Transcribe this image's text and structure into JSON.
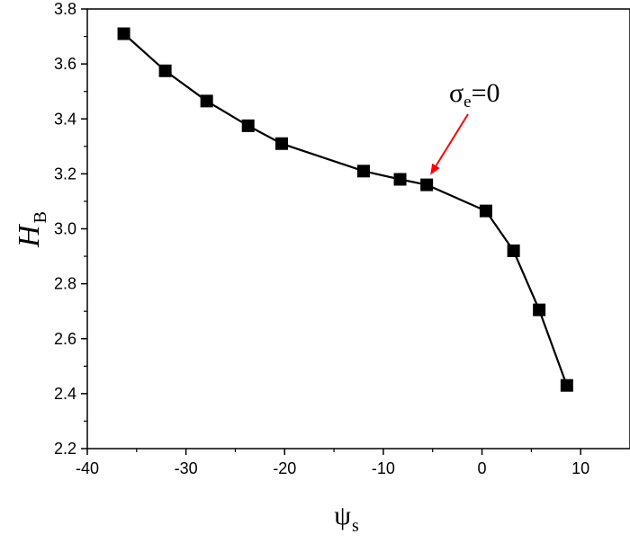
{
  "chart_data": {
    "type": "line",
    "title": "",
    "xlabel": {
      "main": "ψ",
      "sub": "s"
    },
    "ylabel": {
      "main": "H",
      "sub": "B"
    },
    "xlim": [
      -40,
      15
    ],
    "ylim": [
      2.2,
      3.8
    ],
    "x_ticks": [
      -40,
      -30,
      -20,
      -10,
      0,
      10
    ],
    "x_tick_labels": [
      "-40",
      "-30",
      "-20",
      "-10",
      "0",
      "10"
    ],
    "y_ticks": [
      2.2,
      2.4,
      2.6,
      2.8,
      3.0,
      3.2,
      3.4,
      3.6,
      3.8
    ],
    "y_tick_labels": [
      "2.2",
      "2.4",
      "2.6",
      "2.8",
      "3.0",
      "3.2",
      "3.4",
      "3.6",
      "3.8"
    ],
    "grid": false,
    "legend": "none",
    "series": [
      {
        "marker": "square",
        "color": "#000000",
        "x": [
          -36.3,
          -32.1,
          -27.9,
          -23.7,
          -20.3,
          -12.0,
          -8.3,
          -5.6,
          0.4,
          3.2,
          5.8,
          8.6
        ],
        "y": [
          3.71,
          3.575,
          3.465,
          3.375,
          3.31,
          3.21,
          3.18,
          3.16,
          3.065,
          2.92,
          2.705,
          2.43
        ]
      }
    ],
    "annotations": [
      {
        "label": {
          "main": "σ",
          "sub": "e",
          "rest": "=0"
        },
        "points_to_x": -5.6,
        "points_to_y": 3.16,
        "arrow_color": "#ff0000"
      }
    ]
  }
}
